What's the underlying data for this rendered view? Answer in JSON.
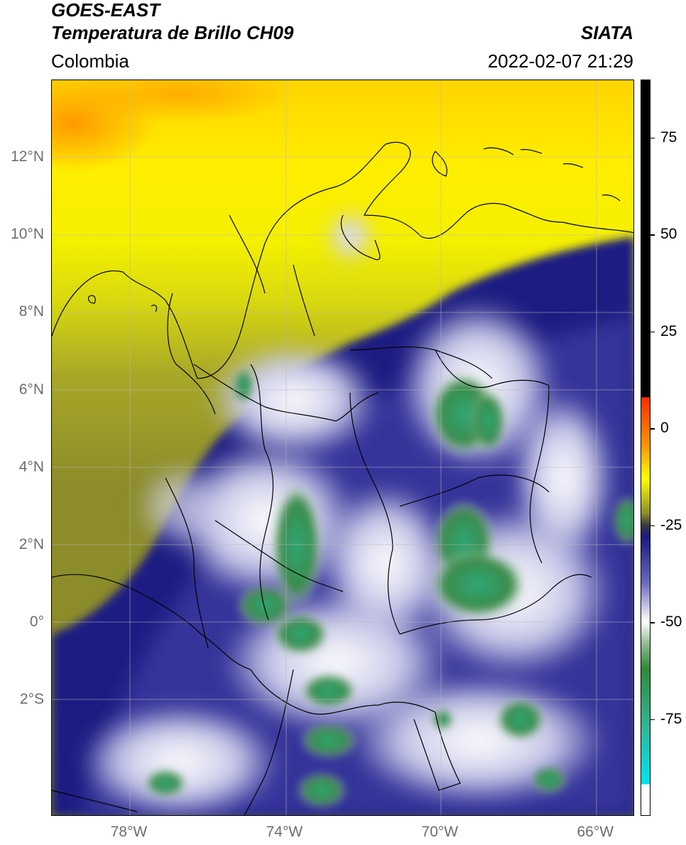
{
  "header": {
    "satellite": "GOES-EAST",
    "product": "Temperatura de Brillo CH09",
    "brand": "SIATA",
    "region": "Colombia",
    "timestamp": "2022-02-07 21:29"
  },
  "map": {
    "lat_labels": [
      {
        "text": "12°N",
        "value": 12
      },
      {
        "text": "10°N",
        "value": 10
      },
      {
        "text": "8°N",
        "value": 8
      },
      {
        "text": "6°N",
        "value": 6
      },
      {
        "text": "4°N",
        "value": 4
      },
      {
        "text": "2°N",
        "value": 2
      },
      {
        "text": "0°",
        "value": 0
      },
      {
        "text": "2°S",
        "value": -2
      }
    ],
    "lon_labels": [
      {
        "text": "78°W",
        "value": -78
      },
      {
        "text": "74°W",
        "value": -74
      },
      {
        "text": "70°W",
        "value": -70
      },
      {
        "text": "66°W",
        "value": -66
      }
    ],
    "extent": {
      "lon_min": -80,
      "lon_max": -65,
      "lat_min": -5,
      "lat_max": 14
    }
  },
  "colorbar": {
    "range": [
      -100,
      90
    ],
    "ticks": [
      {
        "text": "75",
        "value": 75
      },
      {
        "text": "50",
        "value": 50
      },
      {
        "text": "25",
        "value": 25
      },
      {
        "text": "0",
        "value": 0
      },
      {
        "text": "-25",
        "value": -25
      },
      {
        "text": "-50",
        "value": -50
      },
      {
        "text": "-75",
        "value": -75
      }
    ],
    "colors": {
      "black": "#000000",
      "red": "#ff2a00",
      "orange": "#ff9900",
      "yellow": "#ffff00",
      "olive": "#8c8c2a",
      "navy": "#1a1a80",
      "white": "#ffffff",
      "green": "#2f8a3a",
      "teal": "#2fb89a",
      "cyan": "#00e0e8"
    }
  }
}
